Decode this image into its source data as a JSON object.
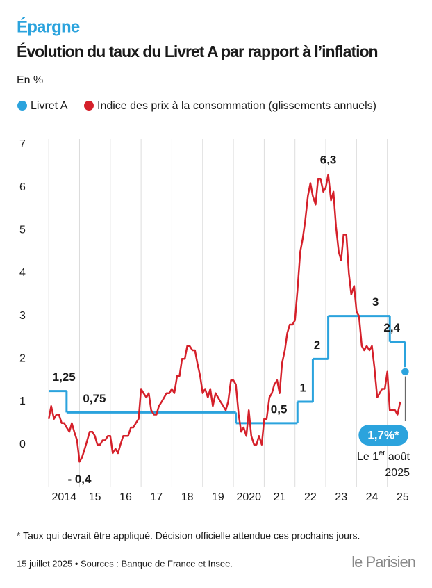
{
  "chart_data": {
    "type": "line",
    "kicker": "Épargne",
    "title": "Évolution du taux du Livret A par rapport à l’inflation",
    "subtitle": "En %",
    "xlim": [
      2013.5,
      2026
    ],
    "ylim": [
      -0.8,
      7
    ],
    "xticks": [
      2014,
      {
        "value": 2015,
        "label": "15"
      },
      {
        "value": 2016,
        "label": "16"
      },
      {
        "value": 2017,
        "label": "17"
      },
      {
        "value": 2018,
        "label": "18"
      },
      {
        "value": 2019,
        "label": "19"
      },
      2020,
      {
        "value": 2021,
        "label": "21"
      },
      {
        "value": 2022,
        "label": "22"
      },
      {
        "value": 2023,
        "label": "23"
      },
      {
        "value": 2024,
        "label": "24"
      },
      {
        "value": 2025,
        "label": "25"
      }
    ],
    "yticks": [
      0,
      1,
      2,
      3,
      4,
      5,
      6,
      7
    ],
    "grid": true,
    "series": [
      {
        "name": "Livret A",
        "color": "#2ba3dd",
        "step": true,
        "x": [
          2014,
          2014.58,
          2020.08,
          2022.08,
          2022.58,
          2023.08,
          2025.08,
          2025.58
        ],
        "values": [
          1.25,
          0.75,
          0.5,
          1,
          2,
          3,
          2.4,
          1.7
        ],
        "value_labels": [
          "1,25",
          "0,75",
          "0,5",
          "1",
          "2",
          "3",
          "2,4",
          "1,7%*"
        ]
      },
      {
        "name": "Indice des prix à la consommation (glissements annuels)",
        "color": "#d5202a",
        "x": [
          2014,
          2014.08,
          2014.17,
          2014.25,
          2014.33,
          2014.42,
          2014.5,
          2014.58,
          2014.67,
          2014.75,
          2014.83,
          2014.92,
          2015,
          2015.08,
          2015.17,
          2015.25,
          2015.33,
          2015.42,
          2015.5,
          2015.58,
          2015.67,
          2015.75,
          2015.83,
          2015.92,
          2016,
          2016.08,
          2016.17,
          2016.25,
          2016.33,
          2016.42,
          2016.5,
          2016.58,
          2016.67,
          2016.75,
          2016.83,
          2016.92,
          2017,
          2017.08,
          2017.17,
          2017.25,
          2017.33,
          2017.42,
          2017.5,
          2017.58,
          2017.67,
          2017.75,
          2017.83,
          2017.92,
          2018,
          2018.08,
          2018.17,
          2018.25,
          2018.33,
          2018.42,
          2018.5,
          2018.58,
          2018.67,
          2018.75,
          2018.83,
          2018.92,
          2019,
          2019.08,
          2019.17,
          2019.25,
          2019.33,
          2019.42,
          2019.5,
          2019.58,
          2019.67,
          2019.75,
          2019.83,
          2019.92,
          2020,
          2020.08,
          2020.17,
          2020.25,
          2020.33,
          2020.42,
          2020.5,
          2020.58,
          2020.67,
          2020.75,
          2020.83,
          2020.92,
          2021,
          2021.08,
          2021.17,
          2021.25,
          2021.33,
          2021.42,
          2021.5,
          2021.58,
          2021.67,
          2021.75,
          2021.83,
          2021.92,
          2022,
          2022.08,
          2022.17,
          2022.25,
          2022.33,
          2022.42,
          2022.5,
          2022.58,
          2022.67,
          2022.75,
          2022.83,
          2022.92,
          2023,
          2023.08,
          2023.17,
          2023.25,
          2023.33,
          2023.42,
          2023.5,
          2023.58,
          2023.67,
          2023.75,
          2023.83,
          2023.92,
          2024,
          2024.08,
          2024.17,
          2024.25,
          2024.33,
          2024.42,
          2024.5,
          2024.58,
          2024.67,
          2024.75,
          2024.83,
          2024.92,
          2025,
          2025.08,
          2025.17,
          2025.25,
          2025.33,
          2025.42
        ],
        "values": [
          0.6,
          0.9,
          0.6,
          0.7,
          0.7,
          0.5,
          0.5,
          0.4,
          0.3,
          0.5,
          0.3,
          0.1,
          -0.4,
          -0.3,
          -0.1,
          0.1,
          0.3,
          0.3,
          0.2,
          0.0,
          0.0,
          0.1,
          0.1,
          0.2,
          0.2,
          -0.2,
          -0.1,
          -0.2,
          0.0,
          0.2,
          0.2,
          0.2,
          0.4,
          0.4,
          0.5,
          0.6,
          1.3,
          1.2,
          1.1,
          1.2,
          0.8,
          0.7,
          0.7,
          0.9,
          1.0,
          1.1,
          1.2,
          1.2,
          1.3,
          1.2,
          1.6,
          1.6,
          2.0,
          2.0,
          2.3,
          2.3,
          2.2,
          2.2,
          1.9,
          1.6,
          1.2,
          1.3,
          1.1,
          1.3,
          0.9,
          1.2,
          1.1,
          1.0,
          0.9,
          0.8,
          1.0,
          1.5,
          1.5,
          1.4,
          0.7,
          0.3,
          0.4,
          0.2,
          0.8,
          0.2,
          0.0,
          0.0,
          0.2,
          0.0,
          0.6,
          0.6,
          1.1,
          1.2,
          1.4,
          1.5,
          1.2,
          1.9,
          2.2,
          2.6,
          2.8,
          2.8,
          2.9,
          3.6,
          4.5,
          4.8,
          5.2,
          5.8,
          6.1,
          5.8,
          5.6,
          6.2,
          6.2,
          5.9,
          6.0,
          6.3,
          5.7,
          5.9,
          5.1,
          4.5,
          4.3,
          4.9,
          4.9,
          4.0,
          3.5,
          3.7,
          3.1,
          3.0,
          2.3,
          2.2,
          2.3,
          2.2,
          2.3,
          1.8,
          1.1,
          1.2,
          1.3,
          1.3,
          1.7,
          0.8,
          0.8,
          0.8,
          0.7,
          1.0
        ],
        "value_labels": [
          null,
          null,
          null,
          null,
          null,
          null,
          null,
          null,
          null,
          null,
          null,
          null,
          "- 0,4",
          null,
          null,
          null,
          null,
          null,
          null,
          null,
          null,
          null,
          null,
          null,
          null,
          null,
          null,
          null,
          null,
          null,
          null,
          null,
          null,
          null,
          null,
          null,
          null,
          null,
          null,
          null,
          null,
          null,
          null,
          null,
          null,
          null,
          null,
          null,
          null,
          null,
          null,
          null,
          null,
          null,
          null,
          null,
          null,
          null,
          null,
          null,
          null,
          null,
          null,
          null,
          null,
          null,
          null,
          null,
          null,
          null,
          null,
          null,
          null,
          null,
          null,
          null,
          null,
          null,
          null,
          null,
          null,
          null,
          null,
          null,
          null,
          null,
          null,
          null,
          null,
          null,
          null,
          null,
          null,
          null,
          null,
          null,
          null,
          null,
          null,
          null,
          null,
          null,
          null,
          null,
          null,
          null,
          null,
          null,
          null,
          "6,3",
          null,
          null,
          null,
          null,
          null,
          null,
          null,
          null,
          null,
          null,
          null,
          null,
          null,
          null,
          null,
          null,
          null,
          null,
          null,
          null,
          null,
          null,
          null,
          null,
          null,
          null,
          null,
          null
        ]
      }
    ],
    "date_note": {
      "prefix": "Le 1",
      "sup": "er",
      "rest": "août",
      "year": "2025"
    },
    "footnote": "* Taux qui devrait être appliqué. Décision officielle attendue ces prochains jours.",
    "source": "15 juillet 2025 • Sources : Banque de France et Insee.",
    "logo": "le Parisien"
  }
}
